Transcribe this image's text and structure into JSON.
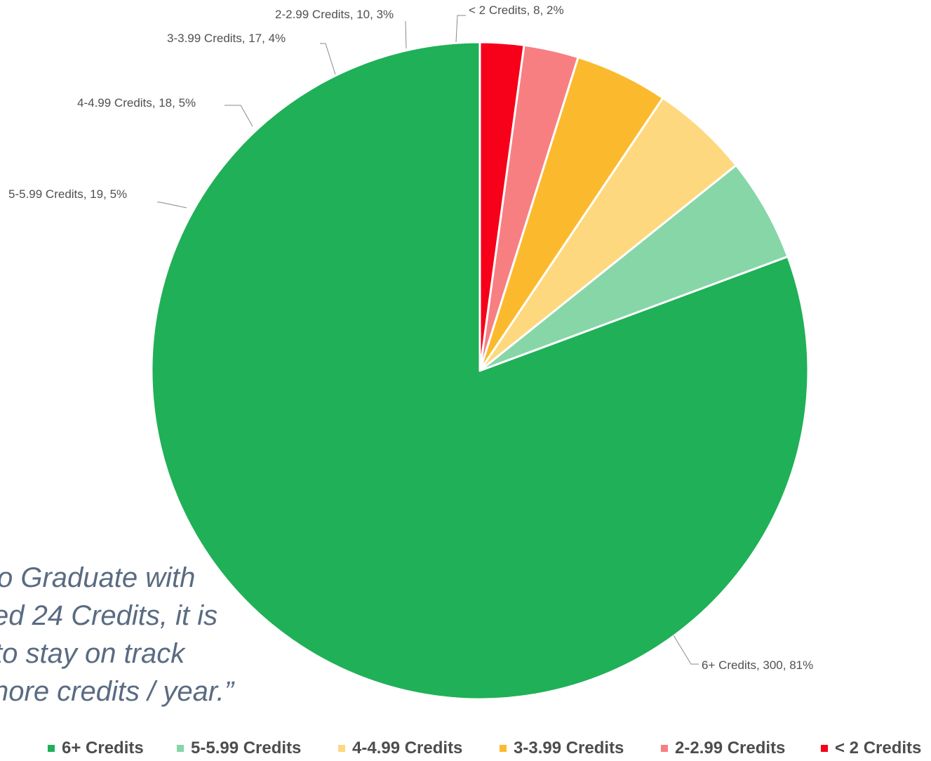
{
  "chart_data": {
    "type": "pie",
    "title": "",
    "start_angle_deg": 0,
    "direction": "clockwise",
    "slices": [
      {
        "label": "6+ Credits",
        "value": 300,
        "percent": "81%",
        "color": "#20b057"
      },
      {
        "label": "5-5.99 Credits",
        "value": 19,
        "percent": "5%",
        "color": "#86d6a8"
      },
      {
        "label": "4-4.99 Credits",
        "value": 18,
        "percent": "5%",
        "color": "#fdd87e"
      },
      {
        "label": "3-3.99 Credits",
        "value": 17,
        "percent": "4%",
        "color": "#fbba2e"
      },
      {
        "label": "2-2.99 Credits",
        "value": 10,
        "percent": "3%",
        "color": "#f77f82"
      },
      {
        "label": "< 2 Credits",
        "value": 8,
        "percent": "2%",
        "color": "#f6001a"
      }
    ],
    "data_labels": [
      "6+ Credits, 300, 81%",
      "5-5.99 Credits, 19, 5%",
      "4-4.99 Credits, 18, 5%",
      "3-3.99 Credits, 17, 4%",
      "2-2.99 Credits, 10, 3%",
      "< 2 Credits, 8, 2%"
    ],
    "legend": {
      "position": "bottom",
      "items": [
        "6+ Credits",
        "5-5.99 Credits",
        "4-4.99 Credits",
        "3-3.99 Credits",
        "2-2.99 Credits",
        "< 2 Credits"
      ]
    }
  },
  "quote": {
    "lines": [
      "o Graduate with",
      "ed 24 Credits, it is",
      "to stay on track",
      "nore credits / year.”"
    ],
    "color": "#5a6b82"
  }
}
